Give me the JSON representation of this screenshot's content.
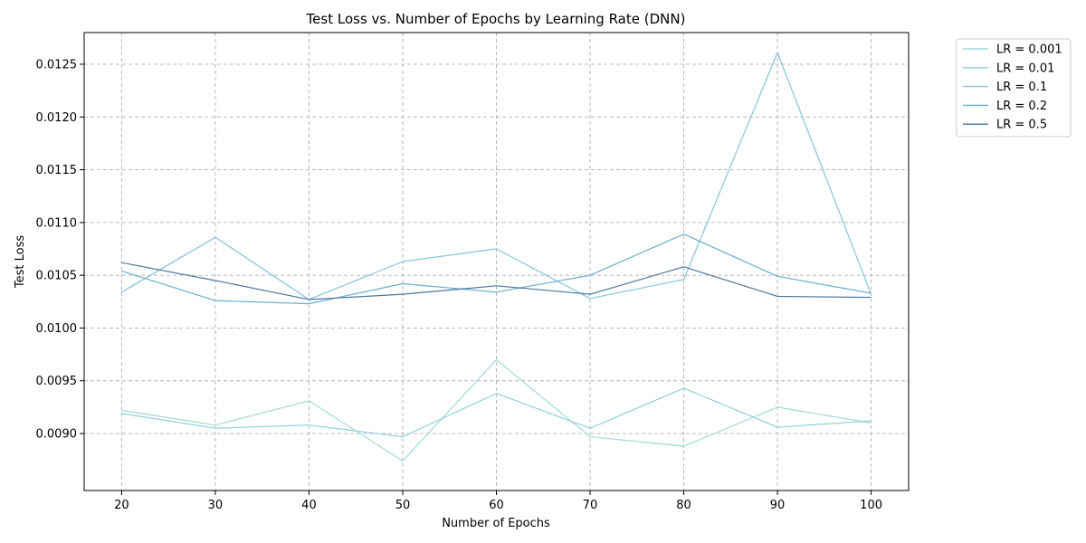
{
  "chart_data": {
    "type": "line",
    "title": "Test Loss vs. Number of Epochs by Learning Rate (DNN)",
    "xlabel": "Number of Epochs",
    "ylabel": "Test Loss",
    "x": [
      20,
      30,
      40,
      50,
      60,
      70,
      80,
      90,
      100
    ],
    "xlim": [
      16,
      104
    ],
    "ylim": [
      0.00846,
      0.0128
    ],
    "xticks": [
      "20",
      "30",
      "40",
      "50",
      "60",
      "70",
      "80",
      "90",
      "100"
    ],
    "xtick_values": [
      20,
      30,
      40,
      50,
      60,
      70,
      80,
      90,
      100
    ],
    "yticks": [
      "0.0090",
      "0.0095",
      "0.0100",
      "0.0105",
      "0.0110",
      "0.0115",
      "0.0120",
      "0.0125"
    ],
    "ytick_values": [
      0.009,
      0.0095,
      0.01,
      0.0105,
      0.011,
      0.0115,
      0.012,
      0.0125
    ],
    "grid": true,
    "legend_position": "outside-top-right",
    "series": [
      {
        "name": "LR = 0.001",
        "color": "#9fd9d6",
        "values": [
          0.00922,
          0.00908,
          0.00931,
          0.00874,
          0.0097,
          0.00897,
          0.00888,
          0.00925,
          0.0091
        ]
      },
      {
        "name": "LR = 0.01",
        "color": "#8fd0d8",
        "values": [
          0.00919,
          0.00905,
          0.00908,
          0.00897,
          0.00938,
          0.00905,
          0.00943,
          0.00906,
          0.00912
        ]
      },
      {
        "name": "LR = 0.1",
        "color": "#86c5d8",
        "values": [
          0.01034,
          0.01086,
          0.01027,
          0.01063,
          0.01075,
          0.01028,
          0.01046,
          0.01261,
          0.01032
        ]
      },
      {
        "name": "LR = 0.2",
        "color": "#6aaed0",
        "values": [
          0.01054,
          0.01026,
          0.01023,
          0.01042,
          0.01034,
          0.0105,
          0.01089,
          0.01049,
          0.01033
        ]
      },
      {
        "name": "LR = 0.5",
        "color": "#4a78a0",
        "values": [
          0.01062,
          0.01045,
          0.01027,
          0.01032,
          0.0104,
          0.01032,
          0.01058,
          0.0103,
          0.01029
        ]
      }
    ]
  }
}
